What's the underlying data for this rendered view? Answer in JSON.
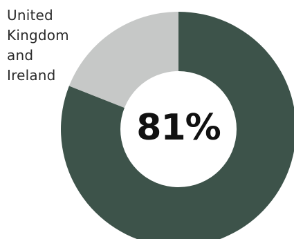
{
  "chart_data": {
    "type": "pie",
    "variant": "donut",
    "categories": [
      "United Kingdom and Ireland",
      ""
    ],
    "values": [
      81,
      19
    ],
    "colors": [
      "#3d534a",
      "#c6c8c7"
    ],
    "center_label": "81%",
    "segment_label": "United Kingdom and Ireland",
    "legend": "none"
  }
}
